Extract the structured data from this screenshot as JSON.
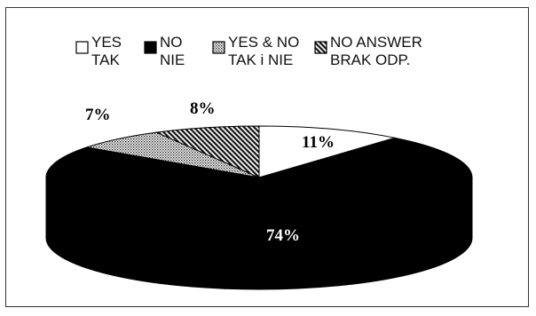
{
  "chart_data": {
    "type": "pie",
    "style": "3d",
    "title": "",
    "legend": {
      "position": "top",
      "entries": [
        {
          "key": "yes",
          "lines": [
            "YES",
            "TAK"
          ],
          "pattern": "white"
        },
        {
          "key": "no",
          "lines": [
            "NO",
            "NIE"
          ],
          "pattern": "black"
        },
        {
          "key": "yes_no",
          "lines": [
            "YES & NO",
            "TAK i NIE"
          ],
          "pattern": "dotted"
        },
        {
          "key": "no_answer",
          "lines": [
            "NO ANSWER",
            "BRAK ODP."
          ],
          "pattern": "diagonal-hatch"
        }
      ]
    },
    "slices": [
      {
        "key": "yes",
        "value": 11,
        "label": "11%"
      },
      {
        "key": "no",
        "value": 74,
        "label": "74%"
      },
      {
        "key": "yes_no",
        "value": 7,
        "label": "7%"
      },
      {
        "key": "no_answer",
        "value": 8,
        "label": "8%"
      }
    ],
    "unit": "%"
  }
}
